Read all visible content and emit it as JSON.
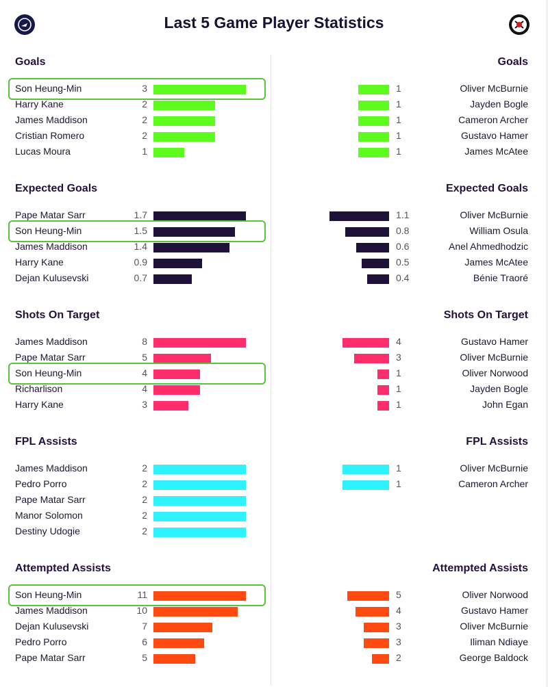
{
  "title": "Last 5 Game Player Statistics",
  "highlight_player": "Son Heung-Min",
  "chart_data": [
    {
      "type": "bar",
      "title": "Goals",
      "color": "#5dfc1e",
      "max": 3,
      "left": [
        {
          "name": "Son Heung-Min",
          "value": 3
        },
        {
          "name": "Harry Kane",
          "value": 2
        },
        {
          "name": "James Maddison",
          "value": 2
        },
        {
          "name": "Cristian Romero",
          "value": 2
        },
        {
          "name": "Lucas Moura",
          "value": 1
        }
      ],
      "right": [
        {
          "name": "Oliver McBurnie",
          "value": 1
        },
        {
          "name": "Jayden Bogle",
          "value": 1
        },
        {
          "name": "Cameron Archer",
          "value": 1
        },
        {
          "name": "Gustavo Hamer",
          "value": 1
        },
        {
          "name": "James McAtee",
          "value": 1
        }
      ]
    },
    {
      "type": "bar",
      "title": "Expected Goals",
      "color": "#1f1238",
      "max": 1.7,
      "left": [
        {
          "name": "Pape Matar Sarr",
          "value": "1.7"
        },
        {
          "name": "Son Heung-Min",
          "value": "1.5"
        },
        {
          "name": "James Maddison",
          "value": "1.4"
        },
        {
          "name": "Harry Kane",
          "value": "0.9"
        },
        {
          "name": "Dejan Kulusevski",
          "value": "0.7"
        }
      ],
      "right": [
        {
          "name": "Oliver McBurnie",
          "value": "1.1"
        },
        {
          "name": "William Osula",
          "value": "0.8"
        },
        {
          "name": "Anel Ahmedhodzic",
          "value": "0.6"
        },
        {
          "name": "James McAtee",
          "value": "0.5"
        },
        {
          "name": "Bénie Traoré",
          "value": "0.4"
        }
      ]
    },
    {
      "type": "bar",
      "title": "Shots On Target",
      "color": "#ff2d6b",
      "max": 8,
      "left": [
        {
          "name": "James Maddison",
          "value": 8
        },
        {
          "name": "Pape Matar Sarr",
          "value": 5
        },
        {
          "name": "Son Heung-Min",
          "value": 4
        },
        {
          "name": "Richarlison",
          "value": 4
        },
        {
          "name": "Harry Kane",
          "value": 3
        }
      ],
      "right": [
        {
          "name": "Gustavo Hamer",
          "value": 4
        },
        {
          "name": "Oliver McBurnie",
          "value": 3
        },
        {
          "name": "Oliver Norwood",
          "value": 1
        },
        {
          "name": "Jayden Bogle",
          "value": 1
        },
        {
          "name": "John Egan",
          "value": 1
        }
      ]
    },
    {
      "type": "bar",
      "title": "FPL Assists",
      "color": "#2ff2ff",
      "max": 2,
      "left": [
        {
          "name": "James Maddison",
          "value": 2
        },
        {
          "name": "Pedro Porro",
          "value": 2
        },
        {
          "name": "Pape Matar Sarr",
          "value": 2
        },
        {
          "name": "Manor Solomon",
          "value": 2
        },
        {
          "name": "Destiny Udogie",
          "value": 2
        }
      ],
      "right": [
        {
          "name": "Oliver McBurnie",
          "value": 1
        },
        {
          "name": "Cameron Archer",
          "value": 1
        }
      ]
    },
    {
      "type": "bar",
      "title": "Attempted Assists",
      "color": "#ff4a12",
      "max": 11,
      "left": [
        {
          "name": "Son Heung-Min",
          "value": 11
        },
        {
          "name": "James Maddison",
          "value": 10
        },
        {
          "name": "Dejan Kulusevski",
          "value": 7
        },
        {
          "name": "Pedro Porro",
          "value": 6
        },
        {
          "name": "Pape Matar Sarr",
          "value": 5
        }
      ],
      "right": [
        {
          "name": "Oliver Norwood",
          "value": 5
        },
        {
          "name": "Gustavo Hamer",
          "value": 4
        },
        {
          "name": "Oliver McBurnie",
          "value": 3
        },
        {
          "name": "Iliman Ndiaye",
          "value": 3
        },
        {
          "name": "George Baldock",
          "value": 2
        }
      ]
    }
  ]
}
